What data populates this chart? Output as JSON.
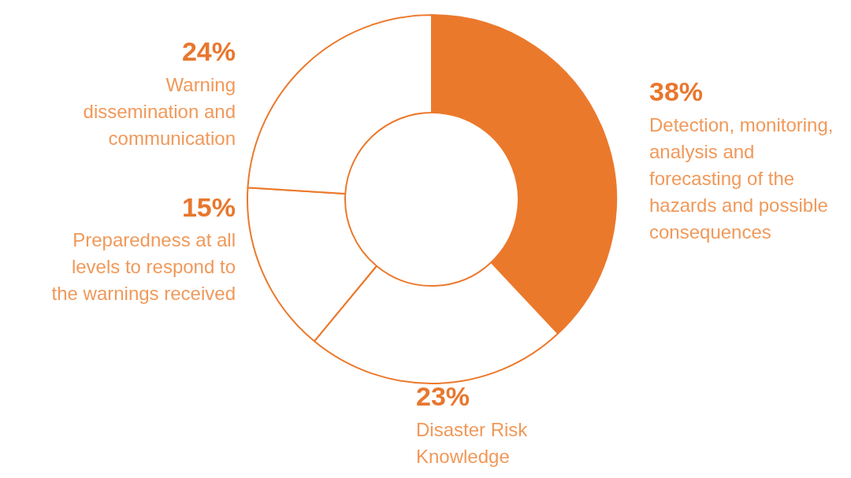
{
  "chart_data": {
    "type": "donut",
    "categories": [
      "Detection, monitoring, analysis and forecasting of the hazards and possible consequences",
      "Disaster Risk Knowledge",
      "Preparedness at all levels to respond to the warnings received",
      "Warning dissemination and communication"
    ],
    "values": [
      38,
      23,
      15,
      24
    ],
    "colors": [
      "#eb792c",
      "#ffffff",
      "#ffffff",
      "#ffffff"
    ],
    "value_labels": [
      "38%",
      "23%",
      "15%",
      "24%"
    ],
    "legend": false
  }
}
